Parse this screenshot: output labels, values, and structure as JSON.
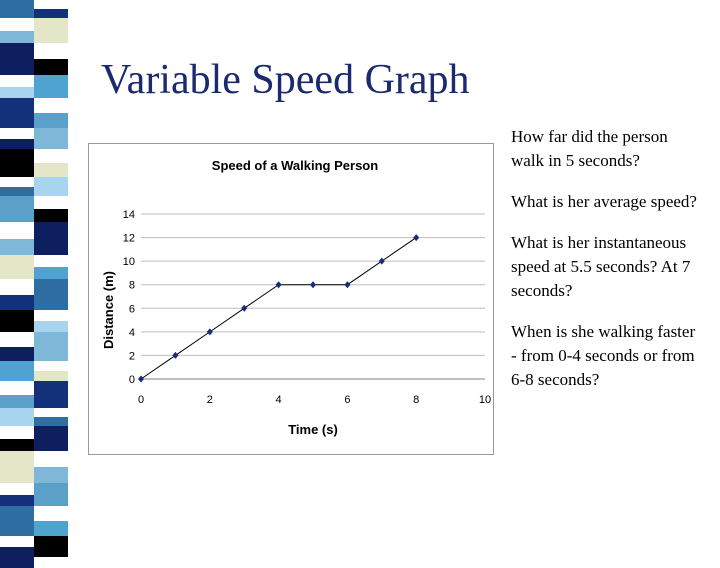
{
  "slide": {
    "title": "Variable Speed Graph",
    "questions": [
      "How far did the person walk in 5 seconds?",
      "What is her average speed?",
      "What is her instantaneous speed at 5.5 seconds?  At 7 seconds?",
      "When is she walking faster - from 0-4 seconds or from 6-8 seconds?"
    ]
  },
  "colors": {
    "title": "#1a2a6e",
    "stripe": [
      "#2f6ea3",
      "#0d1f5e",
      "#7fb7d9",
      "#e3e6c7",
      "#000000",
      "#4fa3d1",
      "#a9d4ef",
      "#13307a",
      "#5aa0c8"
    ],
    "marker": "#1b2a7a",
    "line": "#000000",
    "grid": "#bdbdbd"
  },
  "chart_data": {
    "type": "line",
    "title": "Speed of a Walking Person",
    "xlabel": "Time (s)",
    "ylabel": "Distance (m)",
    "xlim": [
      0,
      10
    ],
    "ylim": [
      0,
      14
    ],
    "xticks": [
      0,
      2,
      4,
      6,
      8,
      10
    ],
    "yticks": [
      0,
      2,
      4,
      6,
      8,
      10,
      12,
      14
    ],
    "grid": true,
    "x": [
      0,
      1,
      2,
      3,
      4,
      5,
      6,
      7,
      8
    ],
    "y": [
      0,
      2,
      4,
      6,
      8,
      8,
      8,
      10,
      12
    ]
  }
}
